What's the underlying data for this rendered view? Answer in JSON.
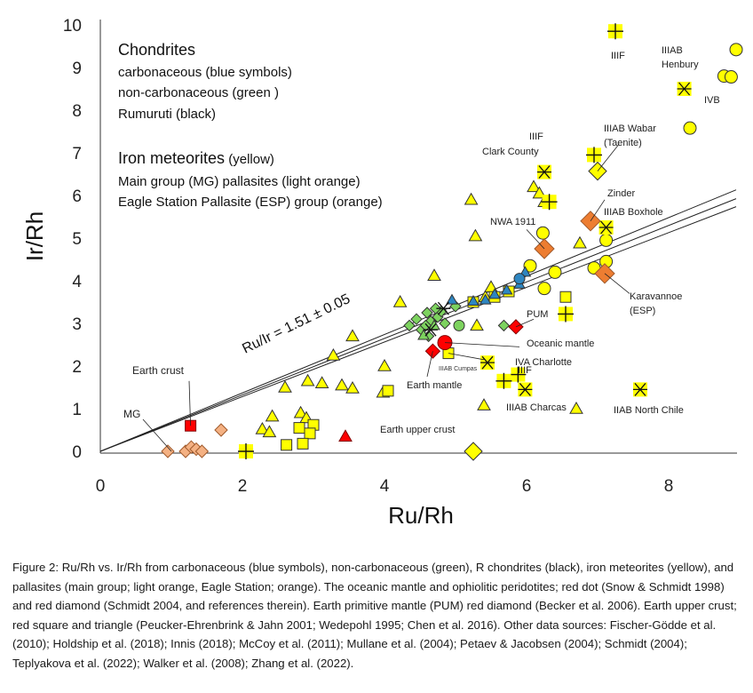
{
  "chart_data": {
    "type": "scatter",
    "xlabel": "Ru/Rh",
    "ylabel": "Ir/Rh",
    "xlim": [
      0,
      9
    ],
    "ylim": [
      0,
      10
    ],
    "xticks": [
      "0",
      "2",
      "4",
      "6",
      "8"
    ],
    "yticks": [
      "0",
      "1",
      "2",
      "3",
      "4",
      "5",
      "6",
      "7",
      "8",
      "9",
      "10"
    ],
    "legend": {
      "chondrites_title": "Chondrites",
      "carbonaceous": "carbonaceous (blue symbols)",
      "noncarbonaceous": "non-carbonaceous (green )",
      "rumuruti": "Rumuruti (black)",
      "iron_title": "Iron meteorites",
      "iron_suffix": " (yellow)",
      "mg": "Main group (MG) pallasites (light orange)",
      "esp": "Eagle Station Pallasite (ESP) group (orange)"
    },
    "fit_label": "Ru/Ir = 1.51 ± 0.05",
    "fit_slopes": [
      0.641,
      0.662,
      0.685
    ],
    "colors": {
      "yellow": "#ffff00",
      "light_orange": "#f4b183",
      "orange": "#ed7d31",
      "red": "#ff0000",
      "green": "#7dd35f",
      "blue": "#2e86c1",
      "black": "#000000"
    },
    "series": [
      {
        "group": "iron",
        "marker": "circle",
        "points": [
          [
            8.95,
            9.42
          ],
          [
            8.78,
            8.8
          ],
          [
            8.88,
            8.78
          ],
          [
            8.3,
            7.58
          ],
          [
            6.23,
            5.12
          ],
          [
            7.12,
            4.95
          ],
          [
            6.05,
            4.35
          ],
          [
            6.95,
            4.3
          ],
          [
            7.12,
            4.45
          ],
          [
            6.4,
            4.2
          ],
          [
            6.25,
            3.82
          ]
        ]
      },
      {
        "group": "iron",
        "marker": "triangle",
        "points": [
          [
            6.1,
            6.2
          ],
          [
            6.18,
            6.05
          ],
          [
            6.25,
            5.85
          ],
          [
            5.22,
            5.9
          ],
          [
            5.28,
            5.05
          ],
          [
            6.75,
            4.88
          ],
          [
            4.7,
            4.12
          ],
          [
            4.22,
            3.5
          ],
          [
            5.42,
            3.62
          ],
          [
            5.5,
            3.85
          ],
          [
            3.55,
            2.7
          ],
          [
            4.0,
            2.0
          ],
          [
            3.28,
            2.25
          ],
          [
            2.6,
            1.5
          ],
          [
            2.92,
            1.65
          ],
          [
            3.12,
            1.6
          ],
          [
            3.4,
            1.55
          ],
          [
            3.55,
            1.48
          ],
          [
            3.98,
            1.38
          ],
          [
            2.42,
            0.82
          ],
          [
            2.28,
            0.52
          ],
          [
            2.38,
            0.45
          ],
          [
            2.82,
            0.9
          ],
          [
            2.9,
            0.78
          ],
          [
            5.4,
            1.08
          ],
          [
            5.3,
            2.95
          ],
          [
            6.7,
            1.0
          ]
        ]
      },
      {
        "group": "iron",
        "marker": "square",
        "points": [
          [
            5.55,
            3.62
          ],
          [
            5.75,
            3.75
          ],
          [
            5.25,
            3.5
          ],
          [
            4.9,
            2.3
          ],
          [
            4.05,
            1.42
          ],
          [
            3.0,
            0.62
          ],
          [
            2.8,
            0.55
          ],
          [
            2.95,
            0.42
          ],
          [
            2.62,
            0.15
          ],
          [
            2.85,
            0.18
          ],
          [
            6.55,
            3.62
          ]
        ]
      },
      {
        "group": "iron",
        "marker": "plus",
        "points": [
          [
            7.25,
            9.85
          ],
          [
            6.95,
            6.95
          ],
          [
            6.32,
            5.85
          ],
          [
            5.88,
            1.8
          ],
          [
            5.68,
            1.65
          ],
          [
            6.55,
            3.22
          ],
          [
            2.05,
            0.0
          ]
        ]
      },
      {
        "group": "iron",
        "marker": "asterisk",
        "points": [
          [
            8.22,
            8.5
          ],
          [
            6.25,
            6.55
          ],
          [
            7.12,
            5.25
          ],
          [
            5.45,
            2.08
          ],
          [
            5.98,
            1.45
          ],
          [
            7.6,
            1.45
          ]
        ]
      },
      {
        "group": "iron",
        "marker": "diamond",
        "points": [
          [
            7.0,
            6.57
          ],
          [
            5.25,
            0.0
          ]
        ]
      },
      {
        "group": "mg_pallasite",
        "marker": "diamond",
        "points": [
          [
            0.95,
            0.0
          ],
          [
            1.2,
            0.0
          ],
          [
            1.28,
            0.1
          ],
          [
            1.35,
            0.05
          ],
          [
            1.43,
            0.0
          ],
          [
            1.7,
            0.5
          ],
          [
            6.9,
            5.4
          ],
          [
            6.25,
            4.75
          ],
          [
            7.1,
            4.17
          ]
        ]
      },
      {
        "group": "noncarbonaceous",
        "marker": "diamond",
        "points": [
          [
            4.35,
            2.95
          ],
          [
            4.6,
            3.25
          ],
          [
            4.75,
            3.15
          ],
          [
            4.52,
            2.85
          ],
          [
            4.65,
            3.05
          ],
          [
            4.8,
            3.28
          ],
          [
            4.45,
            3.1
          ],
          [
            4.58,
            2.95
          ],
          [
            4.85,
            3.0
          ],
          [
            4.72,
            3.35
          ],
          [
            4.62,
            2.7
          ],
          [
            5.68,
            2.95
          ],
          [
            5.0,
            3.4
          ]
        ]
      },
      {
        "group": "noncarbonaceous",
        "marker": "circle",
        "points": [
          [
            5.05,
            2.95
          ]
        ]
      },
      {
        "group": "noncarbonaceous",
        "marker": "triangle",
        "points": [
          [
            4.55,
            2.72
          ],
          [
            4.7,
            2.95
          ]
        ]
      },
      {
        "group": "carbonaceous",
        "marker": "triangle",
        "points": [
          [
            5.42,
            3.55
          ],
          [
            5.55,
            3.68
          ],
          [
            5.72,
            3.78
          ],
          [
            5.9,
            3.92
          ],
          [
            5.98,
            4.2
          ],
          [
            5.25,
            3.52
          ],
          [
            4.95,
            3.55
          ]
        ]
      },
      {
        "group": "carbonaceous",
        "marker": "circle",
        "points": [
          [
            5.9,
            4.05
          ]
        ]
      },
      {
        "group": "rumuruti",
        "marker": "asterisk",
        "points": [
          [
            4.83,
            3.35
          ],
          [
            4.65,
            2.85
          ]
        ]
      },
      {
        "group": "earth",
        "marker": "square",
        "points": [
          [
            1.27,
            0.6
          ]
        ]
      },
      {
        "group": "earth",
        "marker": "triangle",
        "points": [
          [
            3.45,
            0.35
          ]
        ]
      },
      {
        "group": "earth",
        "marker": "diamond",
        "points": [
          [
            4.68,
            2.35
          ],
          [
            5.85,
            2.92
          ]
        ]
      },
      {
        "group": "earth",
        "marker": "circle",
        "points": [
          [
            4.85,
            2.55
          ]
        ]
      }
    ],
    "annotations": {
      "iiab_henbury_1": "IIIAB",
      "iiab_henbury_2": "Henbury",
      "ivb": "IVB",
      "iiif_top": "IIIF",
      "wabar_1": "IIIAB Wabar",
      "wabar_2": "(Taenite)",
      "iiif_mid": "IIIF",
      "clark": "Clark County",
      "zinder": "Zinder",
      "boxhole": "IIIAB Boxhole",
      "nwa": "NWA 1911",
      "karavannoe_1": "Karavannoe",
      "karavannoe_2": "(ESP)",
      "pum": "PUM",
      "oceanic": "Oceanic mantle",
      "charlotte": "IVA Charlotte",
      "cumpas": "IIIAB Cumpas",
      "iiif_low": "IIIF",
      "earth_mantle": "Earth mantle",
      "charcas": "IIIAB Charcas",
      "north_chile": "IIAB North Chile",
      "earth_crust": "Earth  crust",
      "mg": "MG",
      "earth_upper_crust": "Earth upper crust"
    }
  },
  "caption": "Figure 2: Ru/Rh vs. Ir/Rh from carbonaceous (blue symbols), non-carbonaceous (green), R chondrites (black), iron meteorites (yellow), and pallasites (main group; light orange, Eagle Station; orange). The oceanic mantle and ophiolitic peridotites; red dot (Snow & Schmidt 1998) and red diamond (Schmidt 2004, and references therein). Earth primitive mantle (PUM) red diamond (Becker et al. 2006). Earth upper crust; red square and triangle (Peucker-Ehrenbrink & Jahn 2001; Wedepohl 1995; Chen et al. 2016). Other data sources: Fischer-Gödde et al. (2010); Holdship et al. (2018); Innis (2018); McCoy et al. (2011); Mullane et al. (2004); Petaev & Jacobsen (2004); Schmidt (2004); Teplyakova et al. (2022); Walker et al. (2008); Zhang et al. (2022)."
}
